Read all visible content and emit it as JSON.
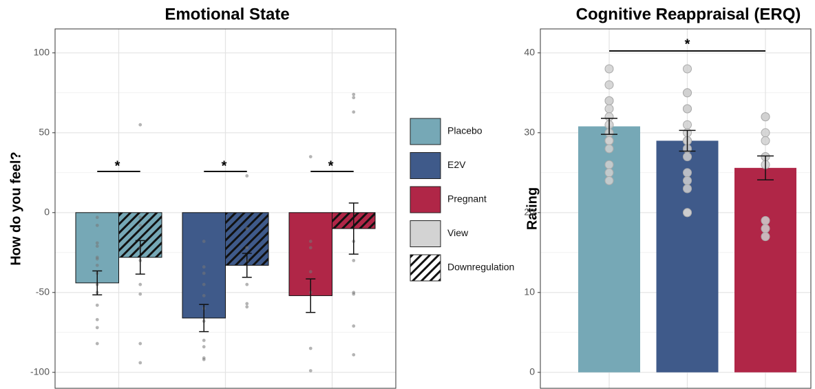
{
  "chart_data": [
    {
      "type": "bar",
      "title": "Emotional State",
      "y_label": "How do you feel?",
      "ylim": [
        -110,
        115
      ],
      "yticks": [
        -100,
        -50,
        0,
        50,
        100
      ],
      "grid": true,
      "groups": [
        {
          "name": "Placebo",
          "color": "#76a8b6"
        },
        {
          "name": "E2V",
          "color": "#3f5a8a"
        },
        {
          "name": "Pregnant",
          "color": "#b02647"
        }
      ],
      "series": [
        {
          "name": "View",
          "color": "#d3d3d3",
          "hatch": false,
          "values": [
            -44,
            -66,
            -52
          ],
          "errors": [
            7.5,
            8.5,
            10.5
          ],
          "points": [
            [
              -3,
              -8,
              -19,
              -21,
              -28,
              -29,
              -33,
              -38,
              -45,
              -50,
              -58,
              -67,
              -72,
              -82
            ],
            [
              -18,
              -34,
              -38,
              -45,
              -52,
              -60,
              -68,
              -80,
              -84,
              -91,
              -92
            ],
            [
              35,
              -18,
              -22,
              -37,
              -50,
              -85,
              -99
            ]
          ]
        },
        {
          "name": "Downregulation",
          "color": "#ffffff",
          "hatch": true,
          "values": [
            -28,
            -33,
            -10
          ],
          "errors": [
            10.5,
            7.5,
            16
          ],
          "points": [
            [
              55,
              -3,
              -8,
              -22,
              -30,
              -45,
              -51,
              -82,
              -94
            ],
            [
              23,
              -10,
              -22,
              -30,
              -45,
              -57,
              -59
            ],
            [
              74,
              72,
              63,
              -18,
              -30,
              -50,
              -51,
              -71,
              -89
            ]
          ]
        }
      ],
      "annotations": [
        "*",
        "*",
        "*"
      ]
    },
    {
      "type": "bar",
      "title": "Cognitive Reappraisal (ERQ)",
      "y_label": "Rating",
      "ylim": [
        -2,
        43
      ],
      "yticks": [
        0,
        10,
        20,
        30,
        40
      ],
      "grid": true,
      "categories": [
        null,
        null,
        null
      ],
      "colors": [
        "#76a8b6",
        "#3f5a8a",
        "#b02647"
      ],
      "values": [
        30.8,
        29,
        25.6
      ],
      "errors": [
        1.0,
        1.3,
        1.5
      ],
      "points": [
        [
          38,
          36,
          34,
          34,
          33,
          32,
          31,
          30,
          29,
          29,
          29,
          28,
          26,
          25,
          24
        ],
        [
          38,
          35,
          35,
          33,
          33,
          31,
          30,
          29,
          29,
          28,
          27,
          25,
          24,
          23,
          20,
          20
        ],
        [
          32,
          32,
          30,
          29,
          27,
          27,
          27,
          26,
          19,
          18,
          17
        ]
      ],
      "annotation": "*"
    }
  ]
}
